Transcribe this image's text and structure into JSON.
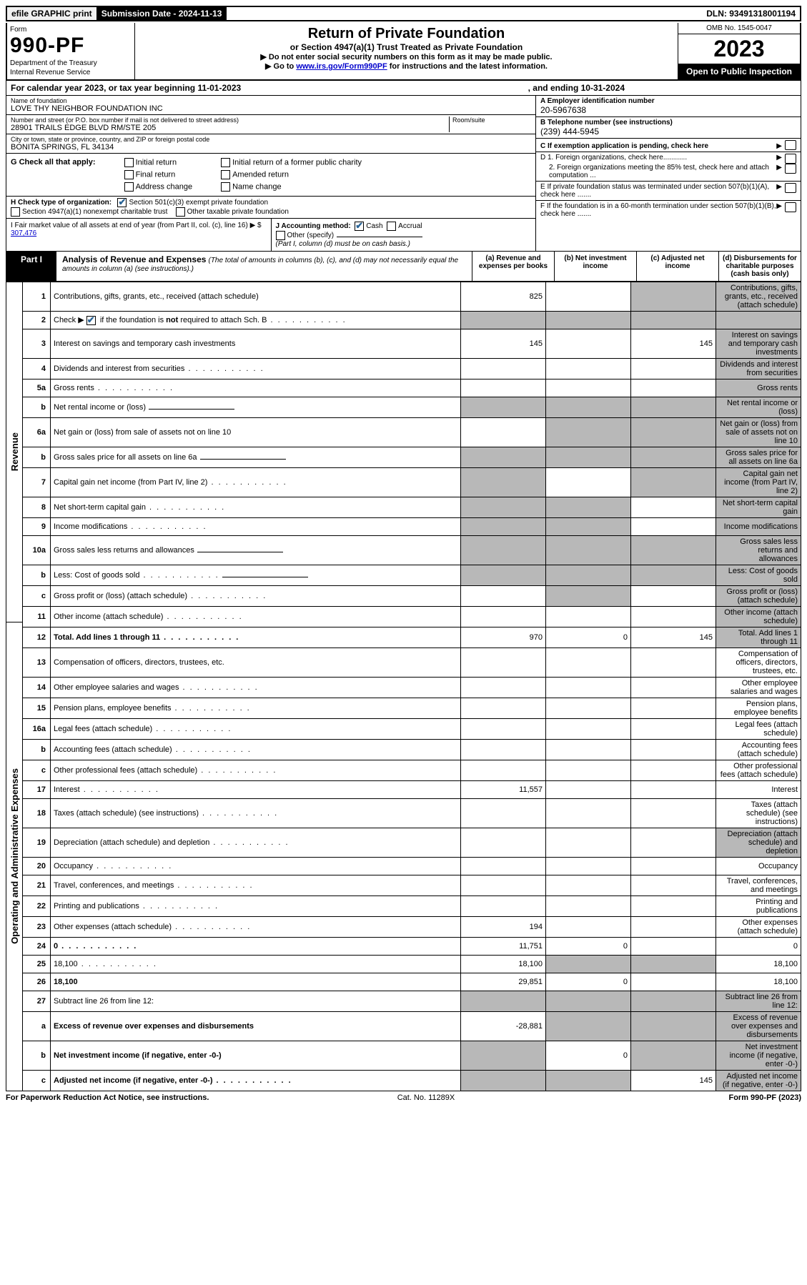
{
  "top": {
    "efile": "efile GRAPHIC print",
    "submission": "Submission Date - 2024-11-13",
    "dln": "DLN: 93491318001194"
  },
  "header": {
    "form_word": "Form",
    "form_no": "990-PF",
    "dept": "Department of the Treasury",
    "irs": "Internal Revenue Service",
    "title": "Return of Private Foundation",
    "subtitle": "or Section 4947(a)(1) Trust Treated as Private Foundation",
    "instr1": "▶ Do not enter social security numbers on this form as it may be made public.",
    "instr2_pre": "▶ Go to ",
    "instr2_link": "www.irs.gov/Form990PF",
    "instr2_post": " for instructions and the latest information.",
    "omb": "OMB No. 1545-0047",
    "year": "2023",
    "open": "Open to Public Inspection"
  },
  "calendar": {
    "text": "For calendar year 2023, or tax year beginning 11-01-2023",
    "end": ", and ending 10-31-2024"
  },
  "entity": {
    "name_label": "Name of foundation",
    "name": "LOVE THY NEIGHBOR FOUNDATION INC",
    "addr_label": "Number and street (or P.O. box number if mail is not delivered to street address)",
    "room_label": "Room/suite",
    "addr": "28901 TRAILS EDGE BLVD RM/STE 205",
    "city_label": "City or town, state or province, country, and ZIP or foreign postal code",
    "city": "BONITA SPRINGS, FL  34134",
    "ein_label": "A Employer identification number",
    "ein": "20-5967638",
    "phone_label": "B Telephone number (see instructions)",
    "phone": "(239) 444-5945",
    "c_label": "C If exemption application is pending, check here",
    "d1": "D 1. Foreign organizations, check here............",
    "d2": "2. Foreign organizations meeting the 85% test, check here and attach computation ...",
    "e": "E  If private foundation status was terminated under section 507(b)(1)(A), check here .......",
    "f": "F  If the foundation is in a 60-month termination under section 507(b)(1)(B), check here .......",
    "g_label": "G Check all that apply:",
    "g_opts": [
      "Initial return",
      "Final return",
      "Address change",
      "Initial return of a former public charity",
      "Amended return",
      "Name change"
    ],
    "h_label": "H Check type of organization:",
    "h_opt1": "Section 501(c)(3) exempt private foundation",
    "h_opt2": "Section 4947(a)(1) nonexempt charitable trust",
    "h_opt3": "Other taxable private foundation",
    "i_label": "I Fair market value of all assets at end of year (from Part II, col. (c), line 16)",
    "i_value": "307,476",
    "j_label": "J Accounting method:",
    "j_cash": "Cash",
    "j_accrual": "Accrual",
    "j_other": "Other (specify)",
    "j_note": "(Part I, column (d) must be on cash basis.)"
  },
  "part1": {
    "label": "Part I",
    "title": "Analysis of Revenue and Expenses",
    "note": " (The total of amounts in columns (b), (c), and (d) may not necessarily equal the amounts in column (a) (see instructions).)",
    "col_a": "(a)   Revenue and expenses per books",
    "col_b": "(b)   Net investment income",
    "col_c": "(c)   Adjusted net income",
    "col_d": "(d)   Disbursements for charitable purposes (cash basis only)"
  },
  "side": {
    "revenue": "Revenue",
    "expenses": "Operating and Administrative Expenses"
  },
  "rows": [
    {
      "n": "1",
      "d": "Contributions, gifts, grants, etc., received (attach schedule)",
      "a": "825",
      "b_sh": false,
      "c_sh": true,
      "d_sh": true
    },
    {
      "n": "2",
      "d": "",
      "dots": true,
      "a_sh": true,
      "b_sh": true,
      "c_sh": true,
      "d_sh": true,
      "b": "",
      "c": ""
    },
    {
      "n": "3",
      "d": "Interest on savings and temporary cash investments",
      "a": "145",
      "c": "145",
      "d_sh": true
    },
    {
      "n": "4",
      "d": "Dividends and interest from securities",
      "dots": true,
      "d_sh": true
    },
    {
      "n": "5a",
      "d": "Gross rents",
      "dots": true,
      "d_sh": true
    },
    {
      "n": "b",
      "d": "Net rental income or (loss)",
      "inner": true,
      "a_sh": true,
      "b_sh": true,
      "c_sh": true,
      "d_sh": true
    },
    {
      "n": "6a",
      "d": "Net gain or (loss) from sale of assets not on line 10",
      "b_sh": true,
      "c_sh": true,
      "d_sh": true
    },
    {
      "n": "b",
      "d": "Gross sales price for all assets on line 6a",
      "inner": true,
      "a_sh": true,
      "b_sh": true,
      "c_sh": true,
      "d_sh": true
    },
    {
      "n": "7",
      "d": "Capital gain net income (from Part IV, line 2)",
      "dots": true,
      "a_sh": true,
      "c_sh": true,
      "d_sh": true
    },
    {
      "n": "8",
      "d": "Net short-term capital gain",
      "dots": true,
      "a_sh": true,
      "b_sh": true,
      "d_sh": true
    },
    {
      "n": "9",
      "d": "Income modifications",
      "dots": true,
      "a_sh": true,
      "b_sh": true,
      "d_sh": true
    },
    {
      "n": "10a",
      "d": "Gross sales less returns and allowances",
      "inner": true,
      "a_sh": true,
      "b_sh": true,
      "c_sh": true,
      "d_sh": true
    },
    {
      "n": "b",
      "d": "Less: Cost of goods sold",
      "dots": true,
      "inner": true,
      "a_sh": true,
      "b_sh": true,
      "c_sh": true,
      "d_sh": true
    },
    {
      "n": "c",
      "d": "Gross profit or (loss) (attach schedule)",
      "dots": true,
      "a_sh": false,
      "b_sh": true,
      "d_sh": true
    },
    {
      "n": "11",
      "d": "Other income (attach schedule)",
      "dots": true,
      "d_sh": true
    },
    {
      "n": "12",
      "d": "Total. Add lines 1 through 11",
      "dots": true,
      "bold": true,
      "a": "970",
      "b": "0",
      "c": "145",
      "d_sh": true
    },
    {
      "n": "13",
      "d": "Compensation of officers, directors, trustees, etc."
    },
    {
      "n": "14",
      "d": "Other employee salaries and wages",
      "dots": true
    },
    {
      "n": "15",
      "d": "Pension plans, employee benefits",
      "dots": true
    },
    {
      "n": "16a",
      "d": "Legal fees (attach schedule)",
      "dots": true
    },
    {
      "n": "b",
      "d": "Accounting fees (attach schedule)",
      "dots": true
    },
    {
      "n": "c",
      "d": "Other professional fees (attach schedule)",
      "dots": true
    },
    {
      "n": "17",
      "d": "Interest",
      "dots": true,
      "a": "11,557"
    },
    {
      "n": "18",
      "d": "Taxes (attach schedule) (see instructions)",
      "dots": true
    },
    {
      "n": "19",
      "d": "Depreciation (attach schedule) and depletion",
      "dots": true,
      "d_sh": true
    },
    {
      "n": "20",
      "d": "Occupancy",
      "dots": true
    },
    {
      "n": "21",
      "d": "Travel, conferences, and meetings",
      "dots": true
    },
    {
      "n": "22",
      "d": "Printing and publications",
      "dots": true
    },
    {
      "n": "23",
      "d": "Other expenses (attach schedule)",
      "dots": true,
      "a": "194"
    },
    {
      "n": "24",
      "d": "0",
      "dots": true,
      "bold": true,
      "a": "11,751",
      "b": "0",
      "c": ""
    },
    {
      "n": "25",
      "d": "18,100",
      "dots": true,
      "a": "18,100",
      "b_sh": true,
      "c_sh": true
    },
    {
      "n": "26",
      "d": "18,100",
      "bold": true,
      "a": "29,851",
      "b": "0",
      "c": ""
    },
    {
      "n": "27",
      "d": "Subtract line 26 from line 12:",
      "a_sh": true,
      "b_sh": true,
      "c_sh": true,
      "d_sh": true
    },
    {
      "n": "a",
      "d": "Excess of revenue over expenses and disbursements",
      "bold": true,
      "a": "-28,881",
      "b_sh": true,
      "c_sh": true,
      "d_sh": true
    },
    {
      "n": "b",
      "d": "Net investment income (if negative, enter -0-)",
      "bold": true,
      "a_sh": true,
      "b": "0",
      "c_sh": true,
      "d_sh": true
    },
    {
      "n": "c",
      "d": "Adjusted net income (if negative, enter -0-)",
      "dots": true,
      "bold": true,
      "a_sh": true,
      "b_sh": true,
      "c": "145",
      "d_sh": true
    }
  ],
  "footer": {
    "left": "For Paperwork Reduction Act Notice, see instructions.",
    "mid": "Cat. No. 11289X",
    "right": "Form 990-PF (2023)"
  }
}
